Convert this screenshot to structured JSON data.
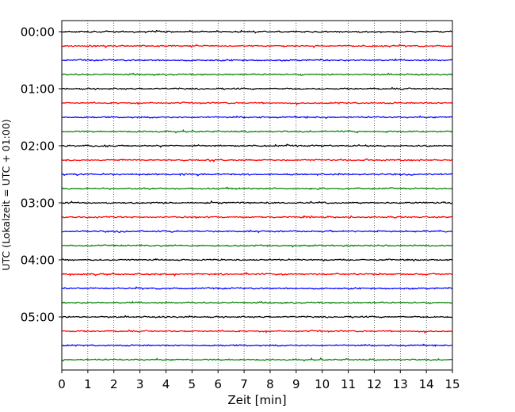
{
  "chart_data": {
    "type": "line",
    "title": "",
    "xlabel": "Zeit  [min]",
    "ylabel": "UTC (Lokalzeit = UTC + 01:00)",
    "xlim": [
      0,
      15
    ],
    "x_ticks": [
      "0",
      "1",
      "2",
      "3",
      "4",
      "5",
      "6",
      "7",
      "8",
      "9",
      "10",
      "11",
      "12",
      "13",
      "14",
      "15"
    ],
    "y_tick_labels": [
      "00:00",
      "01:00",
      "02:00",
      "03:00",
      "04:00",
      "05:00"
    ],
    "trace_interval_min": 15,
    "trace_count": 24,
    "trace_colors": [
      "#000000",
      "#ff0000",
      "#0000ff",
      "#008000"
    ],
    "vertical_grid": true,
    "grid_style": "dotted"
  }
}
